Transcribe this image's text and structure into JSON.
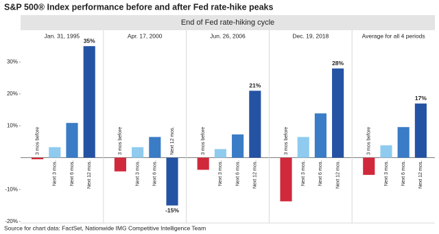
{
  "chart_data": {
    "type": "bar",
    "title": "S&P 500® Index performance before and after Fed rate-hike peaks",
    "header": "End of Fed rate-hiking cycle",
    "categories": [
      "3 mos before",
      "Next 3 mos.",
      "Next 6 mos.",
      "Next 12 mos."
    ],
    "colors": [
      "#d0293b",
      "#8fcbef",
      "#3a7cc6",
      "#2553a4"
    ],
    "panels": [
      {
        "title": "Jan. 31, 1995",
        "values": [
          -0.5,
          3.3,
          10.9,
          35
        ],
        "value_labels": [
          null,
          null,
          null,
          "35%"
        ]
      },
      {
        "title": "Apr. 17, 2000",
        "values": [
          -4.3,
          3.3,
          6.5,
          -15
        ],
        "value_labels": [
          null,
          null,
          null,
          "-15%"
        ]
      },
      {
        "title": "Jun. 26, 2006",
        "values": [
          -3.8,
          2.7,
          7.3,
          21
        ],
        "value_labels": [
          null,
          null,
          null,
          "21%"
        ]
      },
      {
        "title": "Dec. 19, 2018",
        "values": [
          -13.7,
          6.5,
          13.9,
          28
        ],
        "value_labels": [
          null,
          null,
          null,
          "28%"
        ]
      },
      {
        "title": "Average for all 4 periods",
        "values": [
          -5.4,
          3.9,
          9.6,
          17
        ],
        "value_labels": [
          null,
          null,
          null,
          "17%"
        ]
      }
    ],
    "ylim": [
      -20.5,
      40
    ],
    "yticks": [
      {
        "value": -20,
        "label": "-20%"
      },
      {
        "value": -10,
        "label": "-10%"
      },
      {
        "value": 10,
        "label": "10%"
      },
      {
        "value": 20,
        "label": "20%"
      },
      {
        "value": 30,
        "label": "30%"
      }
    ],
    "source": "Source for chart data: FactSet, Nationwide IMG Competitive Intelligence Team"
  }
}
